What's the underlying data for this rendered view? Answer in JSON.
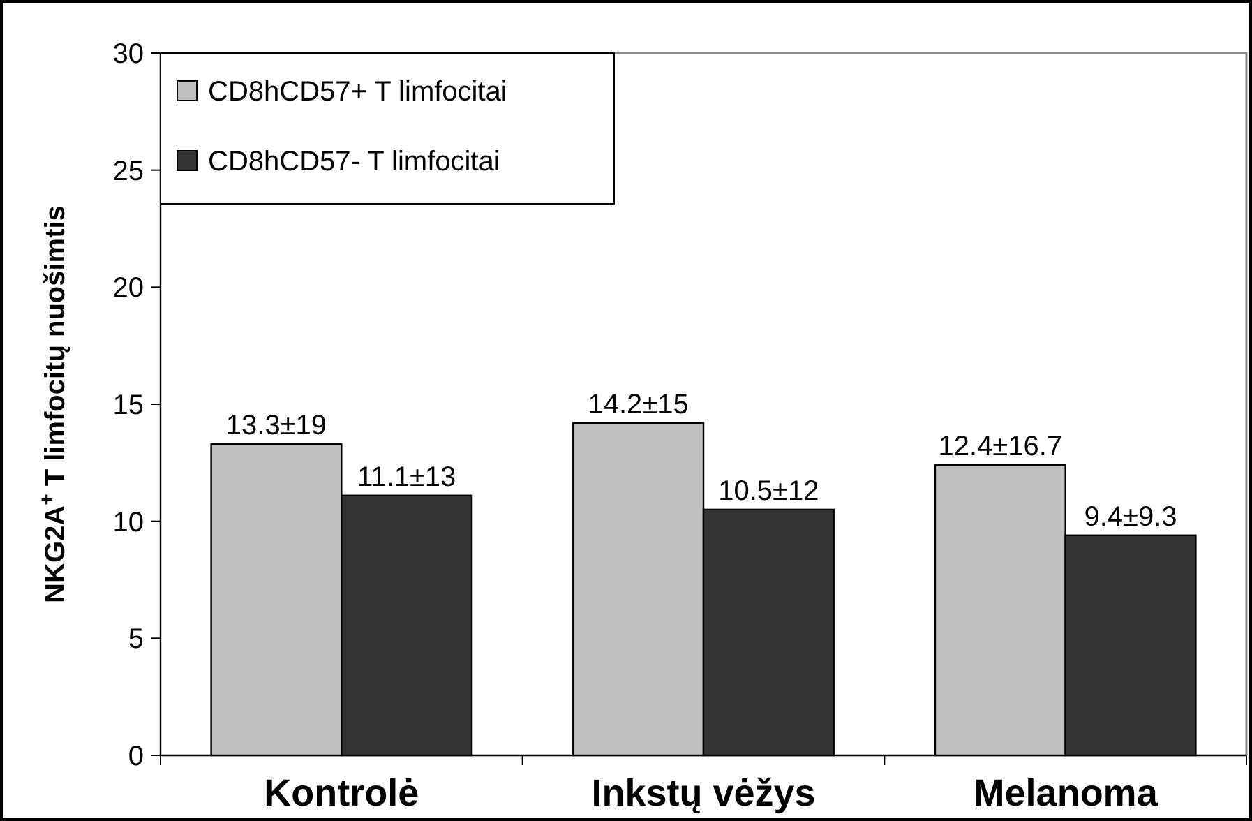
{
  "chart_data": {
    "type": "bar",
    "ylabel": "NKG2A$^{+}$ T limfocitų nuošimtis",
    "categories": [
      "Kontrolė",
      "Inkstų vėžys",
      "Melanoma"
    ],
    "series": [
      {
        "name": "CD8hCD57+ T limfocitai",
        "color": "#c0c0c0",
        "values": [
          13.3,
          14.2,
          12.4
        ],
        "value_labels": [
          "13.3±19",
          "14.2±15",
          "12.4±16.7"
        ]
      },
      {
        "name": "CD8hCD57- T limfocitai",
        "color": "#333333",
        "values": [
          11.1,
          10.5,
          9.4
        ],
        "value_labels": [
          "11.1±13",
          "10.5±12",
          "9.4±9.3"
        ]
      }
    ],
    "ylim": [
      0,
      30
    ],
    "yticks": [
      0,
      5,
      10,
      15,
      20,
      25,
      30
    ],
    "grid": false,
    "legend": "top left"
  }
}
